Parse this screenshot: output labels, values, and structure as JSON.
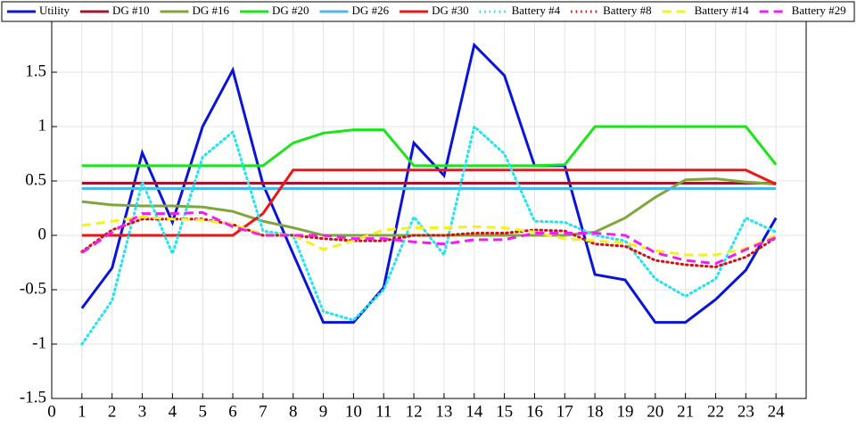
{
  "chart_data": {
    "type": "line",
    "x": [
      1,
      2,
      3,
      4,
      5,
      6,
      7,
      8,
      9,
      10,
      11,
      12,
      13,
      14,
      15,
      16,
      17,
      18,
      19,
      20,
      21,
      22,
      23,
      24
    ],
    "xlim": [
      0,
      25
    ],
    "xticks": [
      0,
      1,
      2,
      3,
      4,
      5,
      6,
      7,
      8,
      9,
      10,
      11,
      12,
      13,
      14,
      15,
      16,
      17,
      18,
      19,
      20,
      21,
      22,
      23,
      24
    ],
    "ylim": [
      -1.5,
      2
    ],
    "yticks": [
      -1.5,
      -1,
      -0.5,
      0,
      0.5,
      1,
      1.5,
      2
    ],
    "grid": true,
    "legend": "top",
    "series": [
      {
        "name": "Utility",
        "color": "#0a14d8",
        "style": "solid",
        "values": [
          -0.67,
          -0.3,
          0.76,
          0.12,
          1.0,
          1.52,
          0.47,
          -0.17,
          -0.8,
          -0.8,
          -0.48,
          0.85,
          0.55,
          1.75,
          1.47,
          0.64,
          0.64,
          -0.36,
          -0.41,
          -0.8,
          -0.8,
          -0.59,
          -0.32,
          0.16
        ]
      },
      {
        "name": "DG #10",
        "color": "#a3142e",
        "style": "solid",
        "values": [
          0.48,
          0.48,
          0.48,
          0.48,
          0.48,
          0.48,
          0.48,
          0.48,
          0.48,
          0.48,
          0.48,
          0.48,
          0.48,
          0.48,
          0.48,
          0.48,
          0.48,
          0.48,
          0.48,
          0.48,
          0.48,
          0.48,
          0.48,
          0.48
        ]
      },
      {
        "name": "DG #16",
        "color": "#7fa63a",
        "style": "solid",
        "values": [
          0.31,
          0.28,
          0.27,
          0.27,
          0.26,
          0.22,
          0.13,
          0.07,
          0.0,
          0.0,
          0.0,
          0.0,
          0.0,
          0.0,
          0.0,
          0.0,
          0.0,
          0.03,
          0.16,
          0.35,
          0.51,
          0.52,
          0.49,
          0.47
        ]
      },
      {
        "name": "DG #20",
        "color": "#19e619",
        "style": "solid",
        "values": [
          0.64,
          0.64,
          0.64,
          0.64,
          0.64,
          0.64,
          0.64,
          0.85,
          0.94,
          0.97,
          0.97,
          0.64,
          0.64,
          0.64,
          0.64,
          0.64,
          0.65,
          1.0,
          1.0,
          1.0,
          1.0,
          1.0,
          1.0,
          0.65
        ]
      },
      {
        "name": "DG #26",
        "color": "#4db8e8",
        "style": "solid",
        "values": [
          0.43,
          0.43,
          0.43,
          0.43,
          0.43,
          0.43,
          0.43,
          0.43,
          0.43,
          0.43,
          0.43,
          0.43,
          0.43,
          0.43,
          0.43,
          0.43,
          0.43,
          0.43,
          0.43,
          0.43,
          0.43,
          0.43,
          0.43,
          0.43
        ]
      },
      {
        "name": "DG #30",
        "color": "#f01414",
        "style": "solid",
        "values": [
          0,
          0,
          0,
          0,
          0,
          0,
          0.2,
          0.6,
          0.6,
          0.6,
          0.6,
          0.6,
          0.6,
          0.6,
          0.6,
          0.6,
          0.6,
          0.6,
          0.6,
          0.6,
          0.6,
          0.6,
          0.6,
          0.47
        ]
      },
      {
        "name": "Battery #4",
        "color": "#1ee6f0",
        "style": "dotted",
        "values": [
          -1.0,
          -0.6,
          0.49,
          -0.17,
          0.72,
          0.95,
          0.04,
          0.0,
          -0.7,
          -0.78,
          -0.5,
          0.17,
          -0.18,
          1.0,
          0.75,
          0.13,
          0.12,
          0.0,
          -0.05,
          -0.4,
          -0.56,
          -0.4,
          0.16,
          0.03
        ]
      },
      {
        "name": "Battery #8",
        "color": "#d40f0f",
        "style": "dotted",
        "values": [
          -0.15,
          0.05,
          0.15,
          0.15,
          0.15,
          0.1,
          0.0,
          0.0,
          -0.03,
          -0.05,
          -0.05,
          0.0,
          0.0,
          0.02,
          0.02,
          0.05,
          0.04,
          -0.08,
          -0.1,
          -0.23,
          -0.27,
          -0.29,
          -0.2,
          -0.02
        ]
      },
      {
        "name": "Battery #14",
        "color": "#f5f01e",
        "style": "dashed",
        "values": [
          0.09,
          0.13,
          0.17,
          0.15,
          0.14,
          0.1,
          0.01,
          0.0,
          -0.13,
          -0.05,
          0.05,
          0.07,
          0.07,
          0.08,
          0.07,
          0.03,
          -0.03,
          -0.05,
          -0.07,
          -0.14,
          -0.18,
          -0.18,
          -0.12,
          0.0
        ]
      },
      {
        "name": "Battery #29",
        "color": "#f01ef0",
        "style": "dashed",
        "values": [
          -0.16,
          0.03,
          0.2,
          0.2,
          0.21,
          0.08,
          0.0,
          0.0,
          0.0,
          -0.03,
          -0.03,
          -0.06,
          -0.08,
          -0.04,
          -0.04,
          0.02,
          0.02,
          0.02,
          0.0,
          -0.16,
          -0.23,
          -0.26,
          -0.13,
          -0.02
        ]
      }
    ]
  }
}
